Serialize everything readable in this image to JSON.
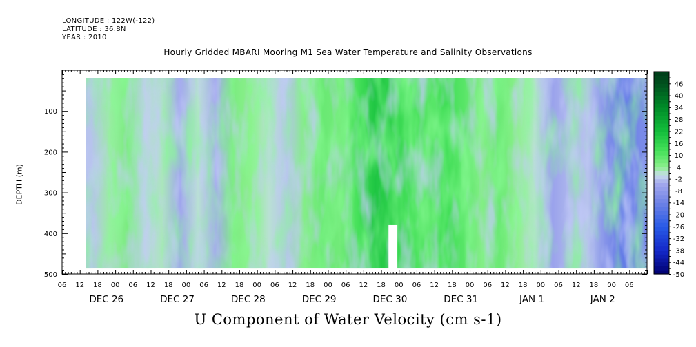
{
  "header": {
    "longitude": "LONGITUDE : 122W(-122)",
    "latitude": "LATITUDE : 36.8N",
    "year": "YEAR : 2010"
  },
  "title": "Hourly Gridded MBARI Mooring M1 Sea Water Temperature and Salinity Observations",
  "variable_title": "U Component of Water Velocity (cm s-1)",
  "chart_data": {
    "type": "heatmap",
    "title": "Hourly Gridded MBARI Mooring M1 Sea Water Temperature and Salinity Observations",
    "subtitle": "U Component of Water Velocity (cm s-1)",
    "xlabel": "",
    "ylabel": "DEPTH (m)",
    "x_ticks": [
      "06",
      "12",
      "18",
      "00",
      "06",
      "12",
      "18",
      "00",
      "06",
      "12",
      "18",
      "00",
      "06",
      "12",
      "18",
      "00",
      "06",
      "12",
      "18",
      "00",
      "06",
      "12",
      "18",
      "00",
      "06",
      "12",
      "18",
      "00",
      "06",
      "12",
      "18",
      "00",
      "06"
    ],
    "x_day_labels": [
      "DEC 26",
      "DEC 27",
      "DEC 28",
      "DEC 29",
      "DEC 30",
      "DEC 31",
      "JAN  1",
      "JAN  2"
    ],
    "x_range_hours": [
      0,
      198
    ],
    "data_x_range_hours": [
      8,
      198
    ],
    "y_ticks": [
      100,
      200,
      300,
      400,
      500
    ],
    "ylim": [
      500,
      0
    ],
    "data_depth_range": [
      20,
      485
    ],
    "colorbar_levels": [
      46,
      40,
      34,
      28,
      22,
      16,
      10,
      4,
      -2,
      -8,
      -14,
      -20,
      -26,
      -32,
      -38,
      -44,
      -50
    ],
    "colorbar_range": [
      -50,
      52
    ],
    "profile_means": [
      {
        "t": 10,
        "v": -2
      },
      {
        "t": 16,
        "v": 3
      },
      {
        "t": 22,
        "v": 6
      },
      {
        "t": 28,
        "v": -1
      },
      {
        "t": 34,
        "v": 2
      },
      {
        "t": 40,
        "v": -5
      },
      {
        "t": 46,
        "v": 1
      },
      {
        "t": 52,
        "v": -4
      },
      {
        "t": 58,
        "v": 6
      },
      {
        "t": 64,
        "v": 4
      },
      {
        "t": 70,
        "v": 1
      },
      {
        "t": 76,
        "v": -2
      },
      {
        "t": 82,
        "v": 5
      },
      {
        "t": 88,
        "v": 8
      },
      {
        "t": 94,
        "v": 7
      },
      {
        "t": 100,
        "v": 12
      },
      {
        "t": 106,
        "v": 20
      },
      {
        "t": 112,
        "v": 16
      },
      {
        "t": 118,
        "v": 12
      },
      {
        "t": 124,
        "v": 10
      },
      {
        "t": 130,
        "v": 13
      },
      {
        "t": 136,
        "v": 10
      },
      {
        "t": 142,
        "v": 5
      },
      {
        "t": 148,
        "v": 8
      },
      {
        "t": 154,
        "v": 4
      },
      {
        "t": 160,
        "v": 1
      },
      {
        "t": 166,
        "v": -6
      },
      {
        "t": 172,
        "v": -3
      },
      {
        "t": 178,
        "v": -2
      },
      {
        "t": 184,
        "v": -10
      },
      {
        "t": 190,
        "v": -16
      },
      {
        "t": 196,
        "v": -12
      }
    ]
  }
}
